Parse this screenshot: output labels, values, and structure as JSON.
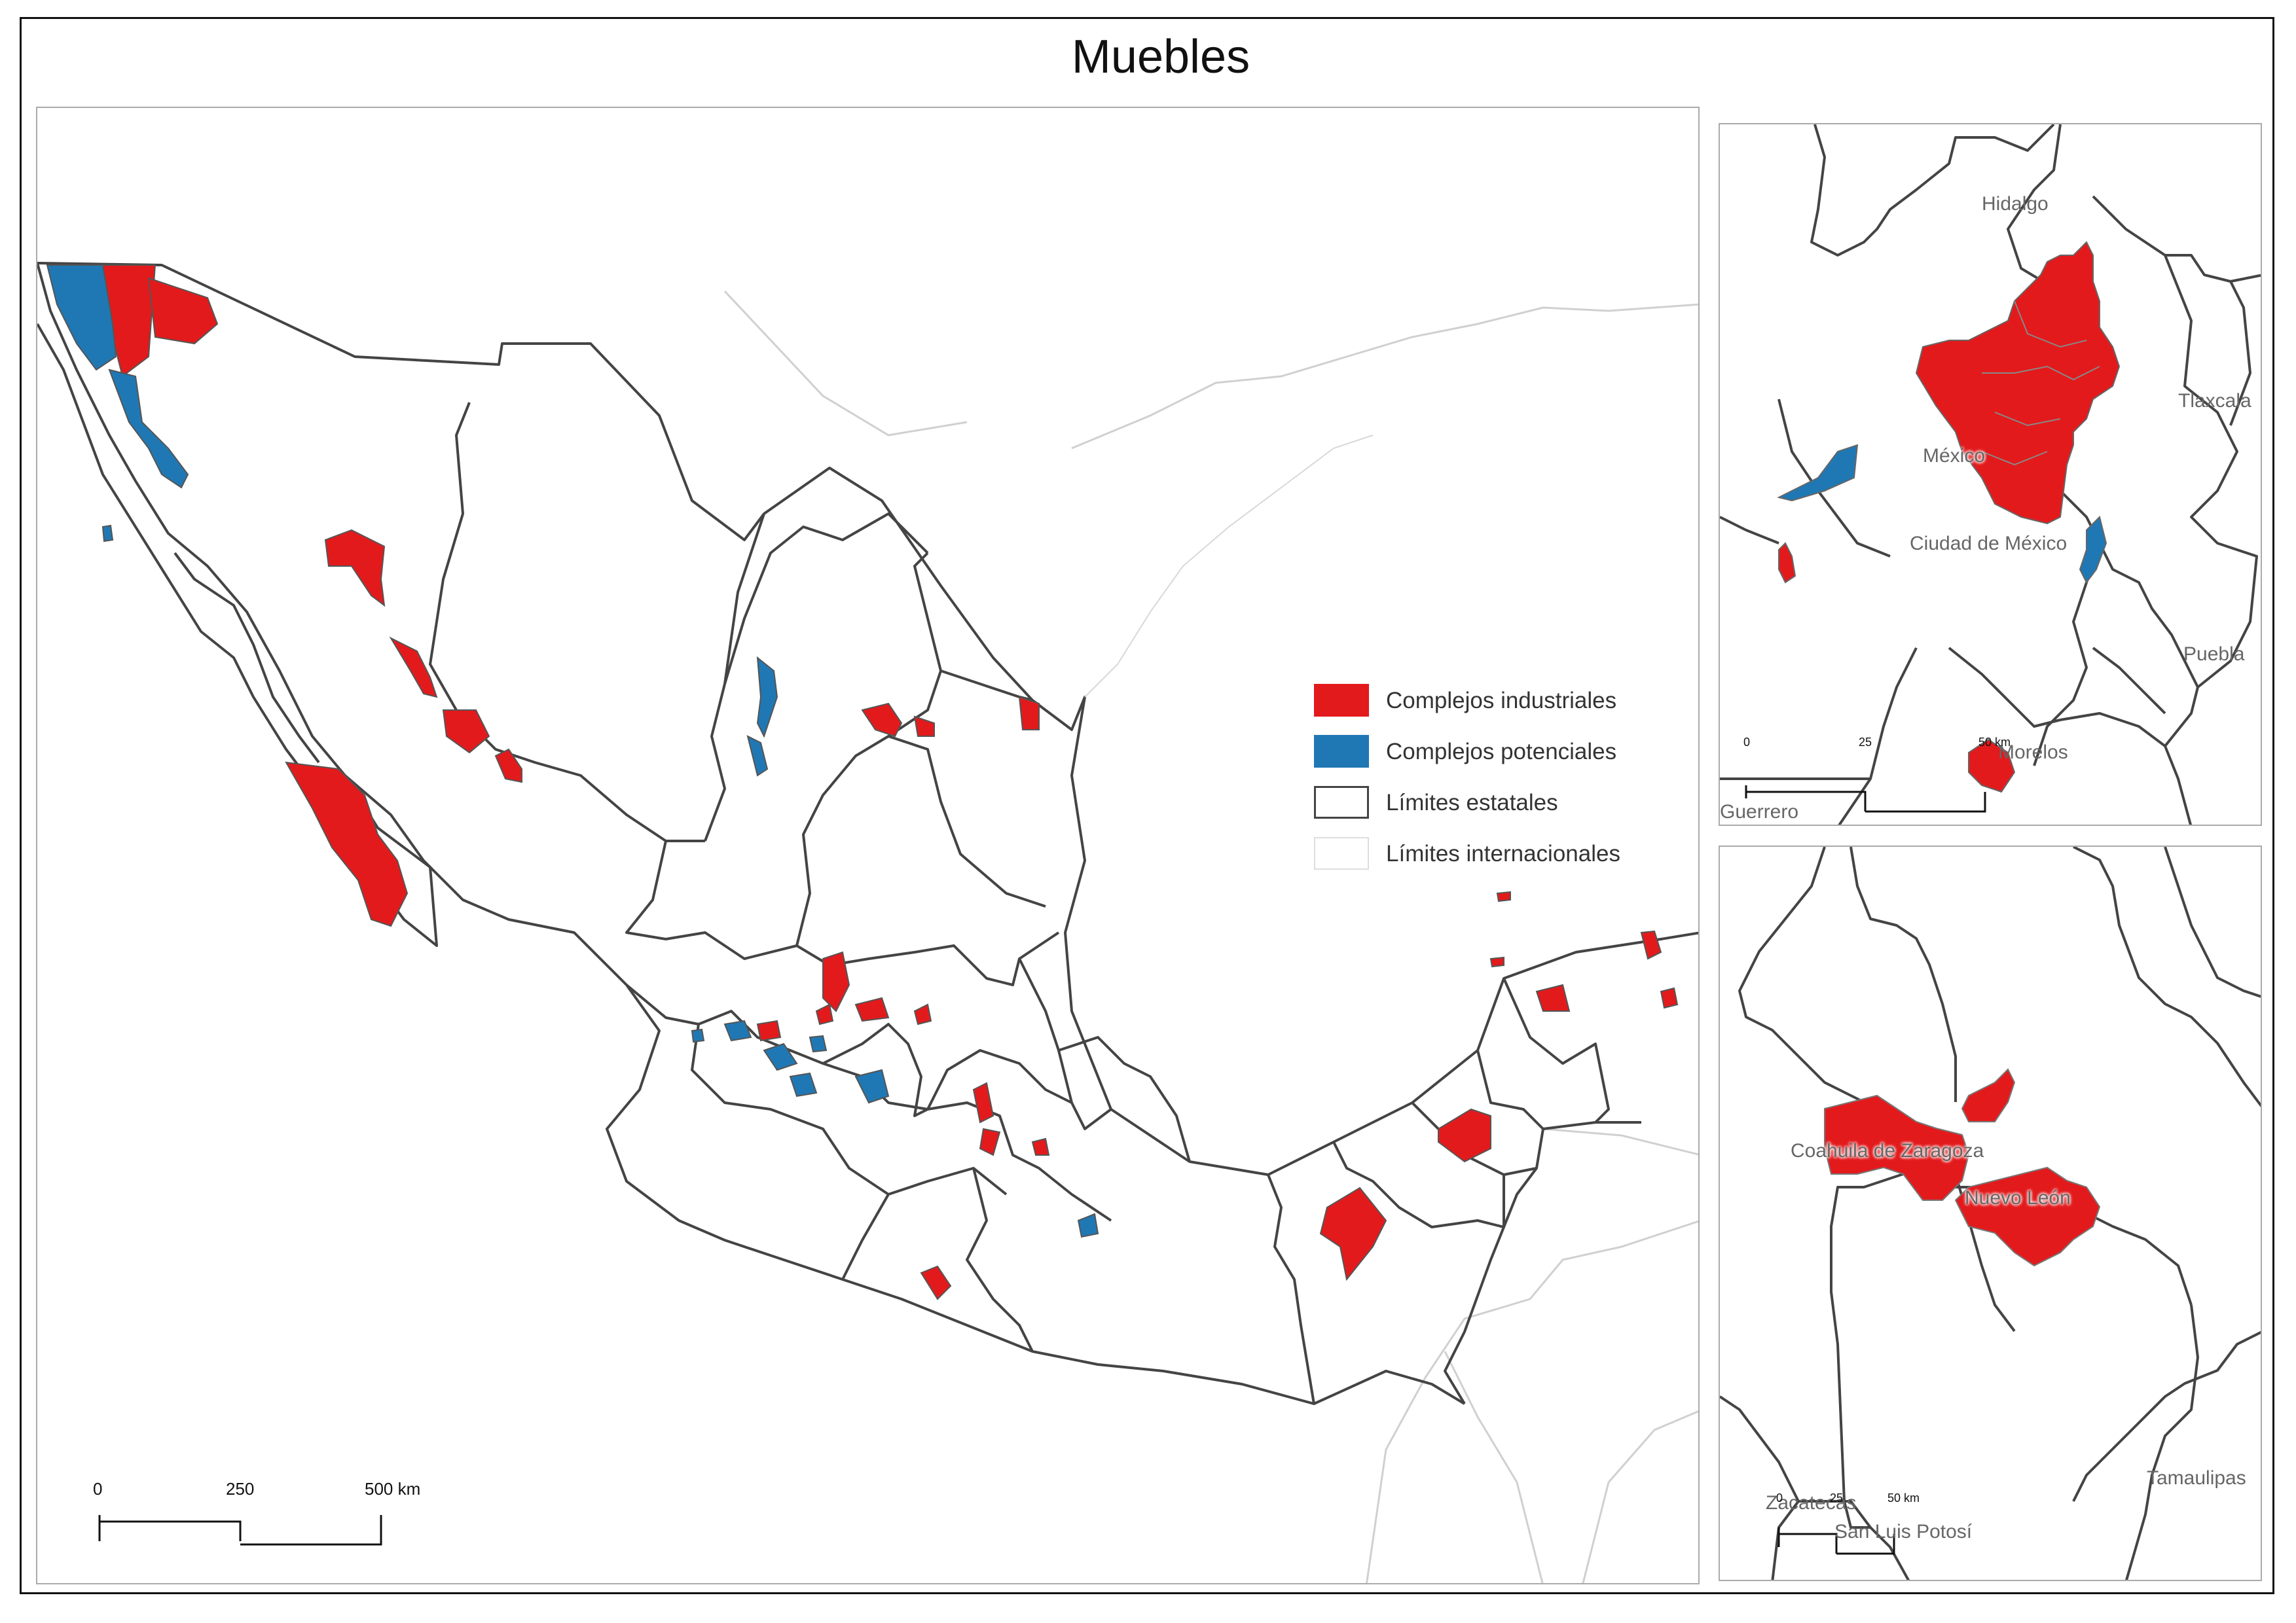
{
  "title": "Muebles",
  "legend": {
    "industrial": "Complejos industriales",
    "potential": "Complejos potenciales",
    "state_limits": "Límites estatales",
    "intl_limits": "Límites internacionales"
  },
  "colors": {
    "industrial": "#e31a1c",
    "potential": "#1f78b4",
    "state_border": "#444444",
    "intl_border": "#cccccc"
  },
  "scalebar_main": {
    "ticks": [
      "0",
      "250",
      "500 km"
    ]
  },
  "inset_center": {
    "labels": {
      "hidalgo": "Hidalgo",
      "tlaxcala": "Tlaxcala",
      "mexico": "México",
      "cdmx": "Ciudad de México",
      "puebla": "Puebla",
      "morelos": "Morelos",
      "guerrero": "Guerrero"
    },
    "scalebar": {
      "ticks": [
        "0",
        "25",
        "50 km"
      ]
    }
  },
  "inset_north": {
    "labels": {
      "coahuila": "Coahuila de Zaragoza",
      "nuevo_leon": "Nuevo León",
      "tamaulipas": "Tamaulipas",
      "zacatecas": "Zacatecas",
      "slp": "San Luis Potosí"
    },
    "scalebar": {
      "ticks": [
        "0",
        "25",
        "50 km"
      ]
    }
  }
}
